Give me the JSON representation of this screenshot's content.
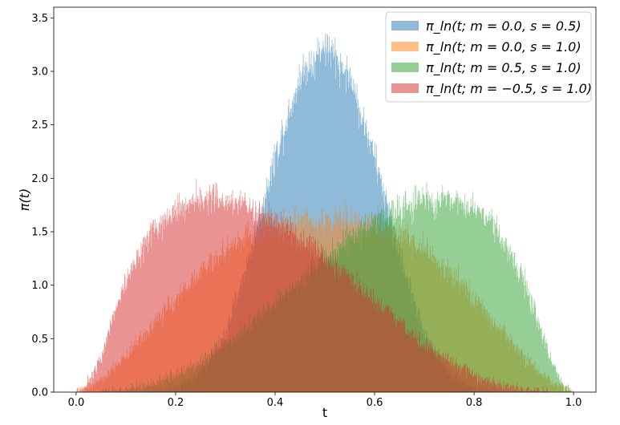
{
  "chart_data": {
    "type": "histogram",
    "xlabel": "t",
    "ylabel": "π(t)",
    "xlim": [
      -0.045,
      1.045
    ],
    "ylim": [
      0,
      3.6
    ],
    "xticks": [
      0.0,
      0.2,
      0.4,
      0.6,
      0.8,
      1.0
    ],
    "xtick_labels": [
      "0.0",
      "0.2",
      "0.4",
      "0.6",
      "0.8",
      "1.0"
    ],
    "yticks": [
      0.0,
      0.5,
      1.0,
      1.5,
      2.0,
      2.5,
      3.0,
      3.5
    ],
    "ytick_labels": [
      "0.0",
      "0.5",
      "1.0",
      "1.5",
      "2.0",
      "2.5",
      "3.0",
      "3.5"
    ],
    "bin_count": 1000,
    "legend_position": "top-right",
    "alpha": 0.5,
    "series": [
      {
        "name": "π_ln(t; m = 0.0, s = 0.5)",
        "color": "#1f77b4",
        "x": [
          0.15,
          0.2,
          0.25,
          0.3,
          0.35,
          0.4,
          0.45,
          0.5,
          0.55,
          0.6,
          0.65,
          0.7,
          0.75,
          0.8,
          0.85
        ],
        "y": [
          0.0,
          0.03,
          0.17,
          0.55,
          1.3,
          2.2,
          2.95,
          3.25,
          2.95,
          2.2,
          1.3,
          0.55,
          0.17,
          0.03,
          0.0
        ]
      },
      {
        "name": "π_ln(t; m = 0.0, s = 1.0)",
        "color": "#ff7f0e",
        "x": [
          0.0,
          0.05,
          0.1,
          0.15,
          0.2,
          0.25,
          0.3,
          0.35,
          0.4,
          0.45,
          0.5,
          0.55,
          0.6,
          0.65,
          0.7,
          0.75,
          0.8,
          0.85,
          0.9,
          0.95,
          1.0
        ],
        "y": [
          0.0,
          0.1,
          0.34,
          0.6,
          0.87,
          1.12,
          1.33,
          1.48,
          1.57,
          1.61,
          1.6,
          1.61,
          1.57,
          1.48,
          1.33,
          1.12,
          0.87,
          0.6,
          0.34,
          0.1,
          0.0
        ]
      },
      {
        "name": "π_ln(t; m = 0.5, s = 1.0)",
        "color": "#2ca02c",
        "x": [
          0.05,
          0.1,
          0.15,
          0.2,
          0.25,
          0.3,
          0.35,
          0.4,
          0.45,
          0.5,
          0.55,
          0.6,
          0.65,
          0.7,
          0.75,
          0.8,
          0.85,
          0.9,
          0.95,
          0.98,
          1.0
        ],
        "y": [
          0.0,
          0.02,
          0.07,
          0.16,
          0.29,
          0.45,
          0.64,
          0.84,
          1.05,
          1.25,
          1.43,
          1.6,
          1.72,
          1.8,
          1.8,
          1.72,
          1.5,
          1.05,
          0.35,
          0.05,
          0.0
        ]
      },
      {
        "name": "π_ln(t; m = −0.5, s = 1.0)",
        "color": "#d62728",
        "x": [
          0.0,
          0.02,
          0.05,
          0.1,
          0.15,
          0.2,
          0.25,
          0.3,
          0.35,
          0.4,
          0.45,
          0.5,
          0.55,
          0.6,
          0.65,
          0.7,
          0.75,
          0.8,
          0.85,
          0.9,
          0.95
        ],
        "y": [
          0.0,
          0.05,
          0.35,
          1.05,
          1.5,
          1.72,
          1.8,
          1.8,
          1.72,
          1.6,
          1.43,
          1.25,
          1.05,
          0.84,
          0.64,
          0.45,
          0.29,
          0.16,
          0.07,
          0.02,
          0.0
        ]
      }
    ]
  }
}
